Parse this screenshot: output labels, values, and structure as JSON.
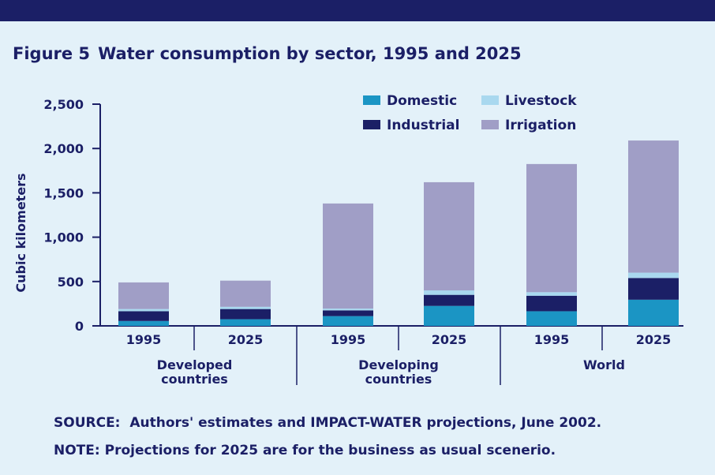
{
  "figure": {
    "number": "Figure 5",
    "title": "Water consumption by sector, 1995 and 2025"
  },
  "colors": {
    "background": "#e3f1f9",
    "banner": "#1b1f66",
    "text": "#1b1f66",
    "Domestic": "#1b95c4",
    "Industrial": "#1b1f66",
    "Livestock": "#a9d8ef",
    "Irrigation": "#a09ec6"
  },
  "chart_data": {
    "type": "bar",
    "stacked": true,
    "categories": [
      "1995",
      "2025",
      "1995",
      "2025",
      "1995",
      "2025"
    ],
    "groups": [
      {
        "label": "Developed countries",
        "label_lines": [
          "Developed",
          "countries"
        ],
        "categories": [
          "1995",
          "2025"
        ]
      },
      {
        "label": "Developing countries",
        "label_lines": [
          "Developing",
          "countries"
        ],
        "categories": [
          "1995",
          "2025"
        ]
      },
      {
        "label": "World",
        "label_lines": [
          "World"
        ],
        "categories": [
          "1995",
          "2025"
        ]
      }
    ],
    "series": [
      {
        "name": "Domestic",
        "values": [
          55,
          75,
          110,
          225,
          165,
          295
        ]
      },
      {
        "name": "Industrial",
        "values": [
          110,
          115,
          65,
          125,
          175,
          245
        ]
      },
      {
        "name": "Livestock",
        "values": [
          25,
          25,
          20,
          50,
          40,
          60
        ]
      },
      {
        "name": "Irrigation",
        "values": [
          300,
          295,
          1185,
          1220,
          1445,
          1490
        ]
      }
    ],
    "legend_order": [
      "Domestic",
      "Livestock",
      "Industrial",
      "Irrigation"
    ],
    "legend_position": "top-right",
    "ylabel": "Cubic kilometers",
    "ylim": [
      0,
      2500
    ],
    "yticks": [
      0,
      500,
      1000,
      1500,
      2000,
      2500
    ],
    "ytick_labels": [
      "0",
      "500",
      "1,000",
      "1,500",
      "2,000",
      "2,500"
    ],
    "grid": false
  },
  "footnotes": {
    "source_label": "SOURCE:",
    "source_text": "Authors' estimates and IMPACT-WATER projections, June 2002.",
    "note_label": "NOTE:",
    "note_text": "Projections for 2025 are for the business as usual scenerio."
  }
}
